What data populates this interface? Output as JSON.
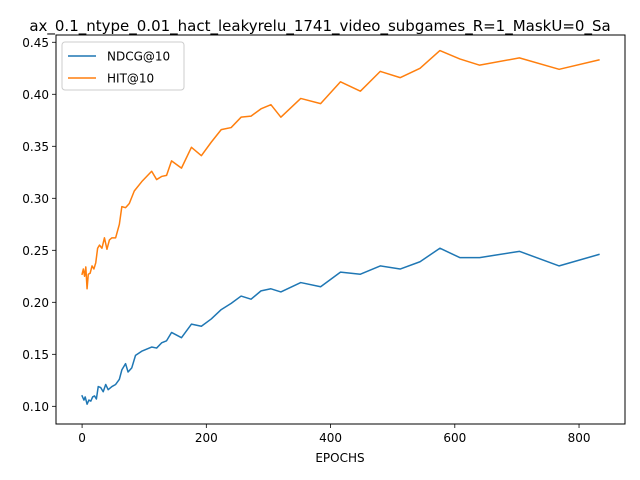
{
  "chart_data": {
    "type": "line",
    "title": "ax_0.1_ntype_0.01_hact_leakyrelu_1741_video_subgames_R=1_MaskU=0_Sa",
    "xlabel": "EPOCHS",
    "ylabel": "",
    "xlim": [
      -42,
      874
    ],
    "ylim": [
      0.083,
      0.457
    ],
    "xticks": [
      0,
      200,
      400,
      600,
      800
    ],
    "yticks": [
      0.1,
      0.15,
      0.2,
      0.25,
      0.3,
      0.35,
      0.4,
      0.45
    ],
    "xtick_labels": [
      "0",
      "200",
      "400",
      "600",
      "800"
    ],
    "ytick_labels": [
      "0.10",
      "0.15",
      "0.20",
      "0.25",
      "0.30",
      "0.35",
      "0.40",
      "0.45"
    ],
    "grid": false,
    "legend_position": "upper-left",
    "series": [
      {
        "name": "NDCG@10",
        "color": "#1f77b4",
        "points": [
          [
            0,
            0.11
          ],
          [
            3,
            0.106
          ],
          [
            5,
            0.109
          ],
          [
            8,
            0.102
          ],
          [
            11,
            0.106
          ],
          [
            14,
            0.105
          ],
          [
            17,
            0.109
          ],
          [
            20,
            0.11
          ],
          [
            23,
            0.107
          ],
          [
            26,
            0.119
          ],
          [
            30,
            0.118
          ],
          [
            34,
            0.114
          ],
          [
            38,
            0.121
          ],
          [
            42,
            0.116
          ],
          [
            48,
            0.119
          ],
          [
            54,
            0.121
          ],
          [
            60,
            0.126
          ],
          [
            64,
            0.135
          ],
          [
            70,
            0.141
          ],
          [
            74,
            0.133
          ],
          [
            80,
            0.137
          ],
          [
            86,
            0.149
          ],
          [
            96,
            0.153
          ],
          [
            112,
            0.157
          ],
          [
            120,
            0.156
          ],
          [
            128,
            0.161
          ],
          [
            136,
            0.163
          ],
          [
            144,
            0.171
          ],
          [
            160,
            0.166
          ],
          [
            176,
            0.179
          ],
          [
            192,
            0.177
          ],
          [
            208,
            0.184
          ],
          [
            224,
            0.193
          ],
          [
            240,
            0.199
          ],
          [
            256,
            0.206
          ],
          [
            272,
            0.203
          ],
          [
            288,
            0.211
          ],
          [
            304,
            0.213
          ],
          [
            320,
            0.21
          ],
          [
            352,
            0.219
          ],
          [
            384,
            0.215
          ],
          [
            416,
            0.229
          ],
          [
            448,
            0.227
          ],
          [
            480,
            0.235
          ],
          [
            512,
            0.232
          ],
          [
            544,
            0.239
          ],
          [
            576,
            0.252
          ],
          [
            608,
            0.243
          ],
          [
            640,
            0.243
          ],
          [
            704,
            0.249
          ],
          [
            768,
            0.235
          ],
          [
            832,
            0.246
          ]
        ]
      },
      {
        "name": "HIT@10",
        "color": "#ff7f0e",
        "points": [
          [
            0,
            0.227
          ],
          [
            2,
            0.232
          ],
          [
            4,
            0.225
          ],
          [
            6,
            0.234
          ],
          [
            8,
            0.213
          ],
          [
            10,
            0.227
          ],
          [
            13,
            0.228
          ],
          [
            16,
            0.235
          ],
          [
            19,
            0.232
          ],
          [
            22,
            0.238
          ],
          [
            25,
            0.252
          ],
          [
            28,
            0.255
          ],
          [
            32,
            0.252
          ],
          [
            36,
            0.262
          ],
          [
            40,
            0.251
          ],
          [
            44,
            0.26
          ],
          [
            48,
            0.262
          ],
          [
            54,
            0.262
          ],
          [
            60,
            0.275
          ],
          [
            64,
            0.292
          ],
          [
            70,
            0.291
          ],
          [
            76,
            0.295
          ],
          [
            84,
            0.307
          ],
          [
            96,
            0.316
          ],
          [
            112,
            0.326
          ],
          [
            120,
            0.318
          ],
          [
            128,
            0.321
          ],
          [
            136,
            0.322
          ],
          [
            144,
            0.336
          ],
          [
            160,
            0.329
          ],
          [
            176,
            0.349
          ],
          [
            192,
            0.341
          ],
          [
            208,
            0.354
          ],
          [
            224,
            0.366
          ],
          [
            240,
            0.368
          ],
          [
            256,
            0.378
          ],
          [
            272,
            0.379
          ],
          [
            288,
            0.386
          ],
          [
            304,
            0.39
          ],
          [
            320,
            0.378
          ],
          [
            352,
            0.396
          ],
          [
            384,
            0.391
          ],
          [
            416,
            0.412
          ],
          [
            448,
            0.403
          ],
          [
            480,
            0.422
          ],
          [
            512,
            0.416
          ],
          [
            544,
            0.425
          ],
          [
            576,
            0.442
          ],
          [
            608,
            0.434
          ],
          [
            640,
            0.428
          ],
          [
            704,
            0.435
          ],
          [
            768,
            0.424
          ],
          [
            832,
            0.433
          ]
        ]
      }
    ]
  }
}
